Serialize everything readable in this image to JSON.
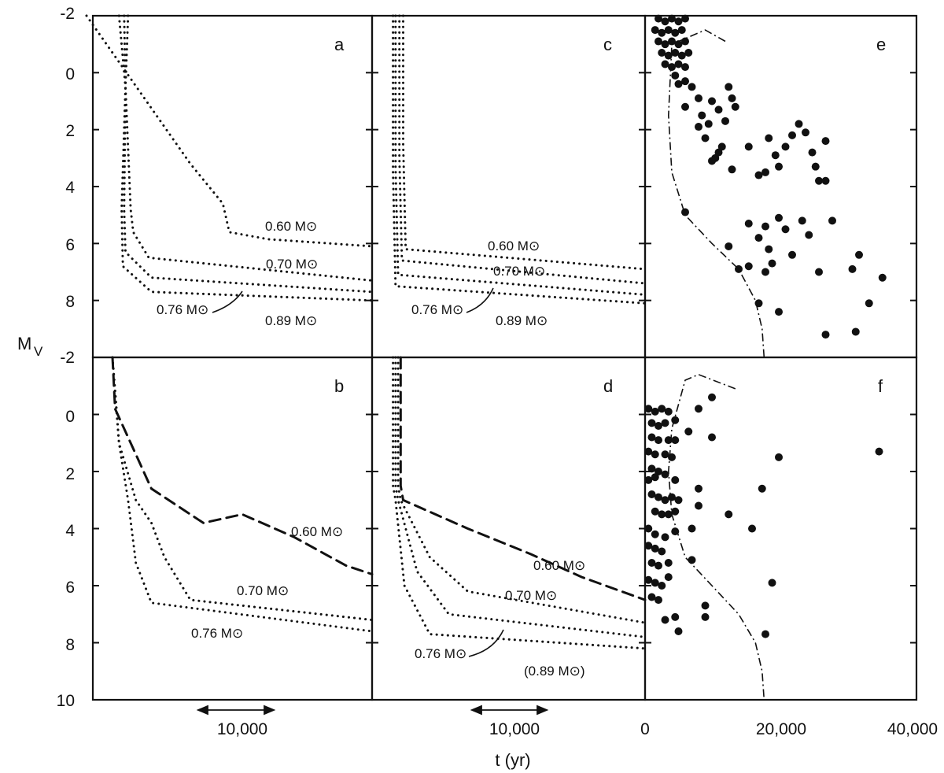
{
  "figure": {
    "ylabel_main": "M",
    "ylabel_sub": "V",
    "xlabel": "t (yr)"
  },
  "y_ticks": [
    "-2",
    "0",
    "2",
    "4",
    "6",
    "8",
    "10"
  ],
  "bottom_ticks": {
    "ab_scale": "10,000",
    "cd_scale": "10,000",
    "ef": [
      "0",
      "20,000",
      "40,000"
    ]
  },
  "colors": {
    "ink": "#111111",
    "background": "#ffffff"
  },
  "chart_data": [
    {
      "panel": "a",
      "type": "line",
      "ylim": [
        10,
        -2
      ],
      "ylabel": "M_V",
      "y_range_shown": [
        -2,
        10
      ],
      "annotations": [
        "0.60 M⊙",
        "0.70 M⊙",
        "0.76 M⊙",
        "0.89 M⊙"
      ],
      "series": [
        {
          "name": "0.60 M⊙",
          "points": [
            [
              -2000,
              -2.0
            ],
            [
              6000,
              3.2
            ],
            [
              8500,
              4.6
            ],
            [
              9000,
              5.6
            ],
            [
              12000,
              5.85
            ],
            [
              20000,
              6.1
            ]
          ]
        },
        {
          "name": "0.70 M⊙",
          "points": [
            [
              500,
              -2.0
            ],
            [
              1000,
              0.5
            ],
            [
              1400,
              4.8
            ],
            [
              1600,
              5.6
            ],
            [
              2800,
              6.5
            ],
            [
              20000,
              7.3
            ]
          ]
        },
        {
          "name": "0.76 M⊙",
          "points": [
            [
              1200,
              -2.0
            ],
            [
              1000,
              0.5
            ],
            [
              900,
              4.8
            ],
            [
              1000,
              6.3
            ],
            [
              3000,
              7.2
            ],
            [
              20000,
              7.7
            ]
          ]
        },
        {
          "name": "0.89 M⊙",
          "points": [
            [
              900,
              -2.0
            ],
            [
              1000,
              0.5
            ],
            [
              700,
              4.8
            ],
            [
              800,
              6.8
            ],
            [
              3000,
              7.7
            ],
            [
              20000,
              8.0
            ]
          ]
        }
      ]
    },
    {
      "panel": "b",
      "type": "line",
      "ylim": [
        10,
        -2
      ],
      "ylabel": "M_V",
      "annotations": [
        "0.60 M⊙",
        "0.70 M⊙",
        "0.76 M⊙"
      ],
      "series": [
        {
          "name": "0.60 M⊙",
          "points": [
            [
              0,
              -2.0
            ],
            [
              200,
              -0.2
            ],
            [
              3000,
              2.6
            ],
            [
              7000,
              3.8
            ],
            [
              10000,
              3.5
            ],
            [
              14000,
              4.3
            ],
            [
              18000,
              5.3
            ],
            [
              20000,
              5.6
            ]
          ]
        },
        {
          "name": "0.70 M⊙",
          "points": [
            [
              0,
              -2.0
            ],
            [
              500,
              1.0
            ],
            [
              1800,
              3.0
            ],
            [
              3000,
              3.8
            ],
            [
              4000,
              5.0
            ],
            [
              6000,
              6.5
            ],
            [
              20000,
              7.2
            ]
          ]
        },
        {
          "name": "0.76 M⊙",
          "points": [
            [
              0,
              -2.0
            ],
            [
              500,
              1.0
            ],
            [
              1200,
              3.0
            ],
            [
              1800,
              5.2
            ],
            [
              3000,
              6.6
            ],
            [
              20000,
              7.6
            ]
          ]
        }
      ]
    },
    {
      "panel": "c",
      "type": "line",
      "ylim": [
        10,
        -2
      ],
      "ylabel": "M_V",
      "annotations": [
        "0.60 M⊙",
        "0.70 M⊙",
        "0.76 M⊙",
        "0.89 M⊙"
      ],
      "series": [
        {
          "name": "0.60 M⊙",
          "points": [
            [
              900,
              -2.0
            ],
            [
              900,
              2.5
            ],
            [
              1100,
              6.2
            ],
            [
              20000,
              6.9
            ]
          ]
        },
        {
          "name": "0.70 M⊙",
          "points": [
            [
              600,
              -2.0
            ],
            [
              600,
              3.0
            ],
            [
              800,
              6.6
            ],
            [
              20000,
              7.4
            ]
          ]
        },
        {
          "name": "0.76 M⊙",
          "points": [
            [
              300,
              -2.0
            ],
            [
              300,
              3.3
            ],
            [
              500,
              7.1
            ],
            [
              20000,
              7.8
            ]
          ]
        },
        {
          "name": "0.89 M⊙",
          "points": [
            [
              100,
              -2.0
            ],
            [
              100,
              3.5
            ],
            [
              300,
              7.5
            ],
            [
              20000,
              8.1
            ]
          ]
        }
      ]
    },
    {
      "panel": "d",
      "type": "line",
      "ylim": [
        10,
        -2
      ],
      "ylabel": "M_V",
      "annotations": [
        "0.60 M⊙",
        "0.70 M⊙",
        "0.76 M⊙",
        "(0.89 M⊙)"
      ],
      "series": [
        {
          "name": "0.60 M⊙",
          "points": [
            [
              700,
              -2.0
            ],
            [
              700,
              2.5
            ],
            [
              900,
              3.0
            ],
            [
              6000,
              4.0
            ],
            [
              11000,
              4.9
            ],
            [
              15000,
              5.7
            ],
            [
              20000,
              6.5
            ]
          ]
        },
        {
          "name": "0.70 M⊙",
          "points": [
            [
              500,
              -2.0
            ],
            [
              500,
              2.5
            ],
            [
              700,
              3.0
            ],
            [
              3000,
              5.0
            ],
            [
              6000,
              6.2
            ],
            [
              20000,
              7.3
            ]
          ]
        },
        {
          "name": "0.76 M⊙",
          "points": [
            [
              300,
              -2.0
            ],
            [
              300,
              2.5
            ],
            [
              500,
              3.0
            ],
            [
              2000,
              5.5
            ],
            [
              4500,
              7.0
            ],
            [
              20000,
              7.8
            ]
          ]
        },
        {
          "name": "(0.89 M⊙)",
          "points": [
            [
              100,
              -2.0
            ],
            [
              100,
              2.5
            ],
            [
              300,
              3.0
            ],
            [
              1000,
              6.0
            ],
            [
              3000,
              7.7
            ],
            [
              20000,
              8.2
            ]
          ]
        }
      ]
    },
    {
      "panel": "e",
      "type": "scatter",
      "xlim": [
        0,
        40000
      ],
      "ylim": [
        10,
        -2
      ],
      "xlabel": "t (yr)",
      "ylabel": "M_V",
      "x_ticks": [
        0,
        20000,
        40000
      ],
      "points": [
        [
          2000,
          -1.9
        ],
        [
          3000,
          -1.8
        ],
        [
          4000,
          -1.9
        ],
        [
          5000,
          -1.8
        ],
        [
          6000,
          -1.9
        ],
        [
          1500,
          -1.5
        ],
        [
          2500,
          -1.4
        ],
        [
          3500,
          -1.5
        ],
        [
          4500,
          -1.4
        ],
        [
          5500,
          -1.5
        ],
        [
          2000,
          -1.1
        ],
        [
          3000,
          -1.0
        ],
        [
          4000,
          -1.1
        ],
        [
          5000,
          -1.0
        ],
        [
          6000,
          -1.1
        ],
        [
          2500,
          -0.7
        ],
        [
          3500,
          -0.6
        ],
        [
          4500,
          -0.7
        ],
        [
          5500,
          -0.6
        ],
        [
          6500,
          -0.7
        ],
        [
          3000,
          -0.3
        ],
        [
          4000,
          -0.2
        ],
        [
          5000,
          -0.3
        ],
        [
          6000,
          -0.2
        ],
        [
          4500,
          0.1
        ],
        [
          5000,
          0.4
        ],
        [
          6000,
          0.3
        ],
        [
          7000,
          0.5
        ],
        [
          8000,
          0.9
        ],
        [
          6000,
          1.2
        ],
        [
          8500,
          1.5
        ],
        [
          9500,
          1.8
        ],
        [
          10000,
          1.0
        ],
        [
          11000,
          1.3
        ],
        [
          12000,
          1.7
        ],
        [
          13000,
          0.9
        ],
        [
          13500,
          1.2
        ],
        [
          12500,
          0.5
        ],
        [
          8000,
          1.9
        ],
        [
          9000,
          2.3
        ],
        [
          11500,
          2.6
        ],
        [
          10500,
          3.0
        ],
        [
          11000,
          2.8
        ],
        [
          10000,
          3.1
        ],
        [
          13000,
          3.4
        ],
        [
          15500,
          2.6
        ],
        [
          17000,
          3.6
        ],
        [
          18000,
          3.5
        ],
        [
          18500,
          2.3
        ],
        [
          19500,
          2.9
        ],
        [
          20000,
          3.3
        ],
        [
          21000,
          2.6
        ],
        [
          22000,
          2.2
        ],
        [
          23000,
          1.8
        ],
        [
          24000,
          2.1
        ],
        [
          25000,
          2.8
        ],
        [
          26000,
          3.8
        ],
        [
          27000,
          3.8
        ],
        [
          27000,
          2.4
        ],
        [
          25500,
          3.3
        ],
        [
          6000,
          4.9
        ],
        [
          12500,
          6.1
        ],
        [
          14000,
          6.9
        ],
        [
          15500,
          6.8
        ],
        [
          15500,
          5.3
        ],
        [
          17000,
          5.8
        ],
        [
          18000,
          5.4
        ],
        [
          18500,
          6.2
        ],
        [
          19000,
          6.7
        ],
        [
          18000,
          7.0
        ],
        [
          20000,
          5.1
        ],
        [
          21000,
          5.5
        ],
        [
          22000,
          6.4
        ],
        [
          23500,
          5.2
        ],
        [
          24500,
          5.7
        ],
        [
          26000,
          7.0
        ],
        [
          28000,
          5.2
        ],
        [
          31000,
          6.9
        ],
        [
          32000,
          6.4
        ],
        [
          33500,
          8.1
        ],
        [
          35500,
          7.2
        ],
        [
          17000,
          8.1
        ],
        [
          20000,
          8.4
        ],
        [
          27000,
          9.2
        ],
        [
          31500,
          9.1
        ]
      ],
      "curve_dashdot": [
        [
          12000,
          -1.1
        ],
        [
          9000,
          -1.5
        ],
        [
          4000,
          -1.0
        ],
        [
          3500,
          1.5
        ],
        [
          4000,
          3.5
        ],
        [
          6000,
          5.0
        ],
        [
          10000,
          6.0
        ],
        [
          14000,
          6.9
        ],
        [
          16500,
          8.0
        ],
        [
          17500,
          9.0
        ],
        [
          17800,
          10.0
        ]
      ]
    },
    {
      "panel": "f",
      "type": "scatter",
      "xlim": [
        0,
        40000
      ],
      "ylim": [
        10,
        -2
      ],
      "xlabel": "t (yr)",
      "ylabel": "M_V",
      "x_ticks": [
        0,
        20000,
        40000
      ],
      "points": [
        [
          500,
          -0.2
        ],
        [
          1500,
          -0.1
        ],
        [
          2500,
          -0.2
        ],
        [
          3500,
          -0.1
        ],
        [
          1000,
          0.3
        ],
        [
          2000,
          0.4
        ],
        [
          3000,
          0.3
        ],
        [
          4500,
          0.2
        ],
        [
          8000,
          -0.2
        ],
        [
          10000,
          -0.6
        ],
        [
          6500,
          0.6
        ],
        [
          3500,
          0.9
        ],
        [
          4500,
          0.9
        ],
        [
          1000,
          0.8
        ],
        [
          2000,
          0.9
        ],
        [
          500,
          1.3
        ],
        [
          1500,
          1.4
        ],
        [
          3000,
          1.4
        ],
        [
          4000,
          1.5
        ],
        [
          10000,
          0.8
        ],
        [
          1000,
          1.9
        ],
        [
          2000,
          2.0
        ],
        [
          3000,
          2.1
        ],
        [
          500,
          2.3
        ],
        [
          1500,
          2.2
        ],
        [
          4500,
          2.3
        ],
        [
          20000,
          1.5
        ],
        [
          35000,
          1.3
        ],
        [
          1000,
          2.8
        ],
        [
          2000,
          2.9
        ],
        [
          3000,
          3.0
        ],
        [
          4000,
          2.9
        ],
        [
          5000,
          3.0
        ],
        [
          8000,
          2.6
        ],
        [
          8000,
          3.2
        ],
        [
          1500,
          3.4
        ],
        [
          2500,
          3.5
        ],
        [
          3500,
          3.5
        ],
        [
          4500,
          3.4
        ],
        [
          12500,
          3.5
        ],
        [
          17500,
          2.6
        ],
        [
          500,
          4.0
        ],
        [
          1500,
          4.2
        ],
        [
          3000,
          4.3
        ],
        [
          4500,
          4.1
        ],
        [
          7000,
          4.0
        ],
        [
          16000,
          4.0
        ],
        [
          500,
          4.6
        ],
        [
          1500,
          4.7
        ],
        [
          2500,
          4.8
        ],
        [
          1000,
          5.2
        ],
        [
          2000,
          5.3
        ],
        [
          3500,
          5.2
        ],
        [
          7000,
          5.1
        ],
        [
          500,
          5.8
        ],
        [
          1500,
          5.9
        ],
        [
          2500,
          6.0
        ],
        [
          3500,
          5.7
        ],
        [
          19000,
          5.9
        ],
        [
          1000,
          6.4
        ],
        [
          2000,
          6.5
        ],
        [
          9000,
          6.7
        ],
        [
          3000,
          7.2
        ],
        [
          4500,
          7.1
        ],
        [
          5000,
          7.6
        ],
        [
          9000,
          7.1
        ],
        [
          18000,
          7.7
        ]
      ],
      "curve_dashdot": [
        [
          13500,
          -0.9
        ],
        [
          8000,
          -1.4
        ],
        [
          6000,
          -1.2
        ],
        [
          4000,
          0.5
        ],
        [
          3500,
          2.0
        ],
        [
          4000,
          3.5
        ],
        [
          6000,
          5.0
        ],
        [
          10000,
          6.0
        ],
        [
          14000,
          7.0
        ],
        [
          16500,
          8.0
        ],
        [
          17500,
          9.0
        ],
        [
          17800,
          10.0
        ]
      ]
    }
  ]
}
